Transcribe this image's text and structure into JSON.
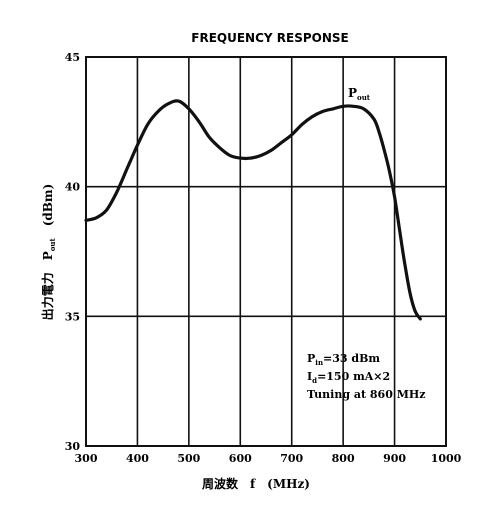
{
  "chart_data": {
    "type": "line",
    "title": "FREQUENCY RESPONSE",
    "xlabel": "周波数　f　(MHz)",
    "ylabel": "出力電力　P",
    "ylabel_sub": "out",
    "ylabel_unit": "(dBm)",
    "xlim": [
      300,
      1000
    ],
    "ylim": [
      30,
      45
    ],
    "xticks": [
      300,
      400,
      500,
      600,
      700,
      800,
      900,
      1000
    ],
    "yticks": [
      30,
      35,
      40,
      45
    ],
    "grid": true,
    "series": [
      {
        "name": "P",
        "name_sub": "out",
        "x": [
          300,
          320,
          340,
          360,
          380,
          400,
          420,
          440,
          460,
          480,
          500,
          520,
          540,
          560,
          580,
          600,
          620,
          640,
          660,
          680,
          700,
          720,
          740,
          760,
          780,
          800,
          820,
          840,
          860,
          870,
          880,
          890,
          900,
          910,
          920,
          930,
          940,
          950
        ],
        "y": [
          38.7,
          38.8,
          39.1,
          39.8,
          40.7,
          41.6,
          42.4,
          42.9,
          43.2,
          43.3,
          43.0,
          42.5,
          41.9,
          41.5,
          41.2,
          41.1,
          41.1,
          41.2,
          41.4,
          41.7,
          42.0,
          42.4,
          42.7,
          42.9,
          43.0,
          43.1,
          43.1,
          43.0,
          42.6,
          42.1,
          41.4,
          40.6,
          39.6,
          38.3,
          37.0,
          35.9,
          35.2,
          34.9
        ]
      }
    ],
    "annotation": {
      "line1_pre": "P",
      "line1_sub": "in",
      "line1_post": "=33 dBm",
      "line2_pre": "I",
      "line2_sub": "d",
      "line2_post": "=150 mA×2",
      "line3": "Tuning at 860 MHz"
    }
  }
}
